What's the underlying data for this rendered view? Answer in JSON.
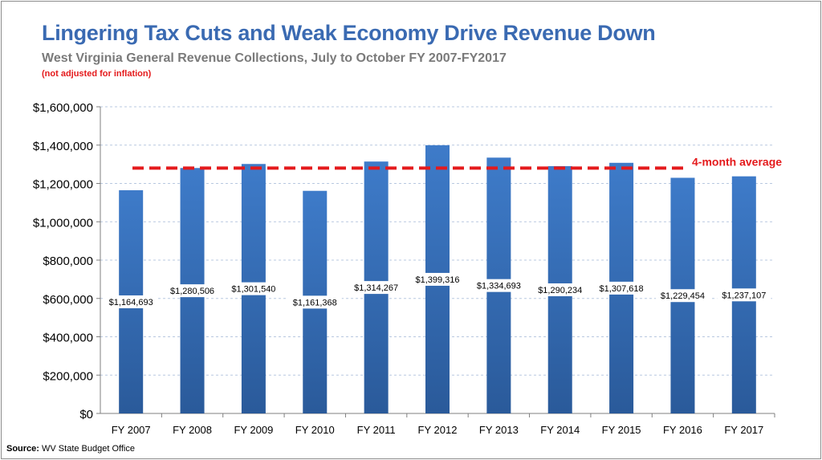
{
  "header": {
    "title": "Lingering Tax Cuts and Weak Economy Drive Revenue Down",
    "subtitle": "West Virginia General Revenue Collections, July to October FY 2007-FY2017",
    "note": "(not adjusted for inflation)"
  },
  "footer": {
    "source_label": "Source:",
    "source_text": "WV State Budget Office"
  },
  "chart_data": {
    "type": "bar",
    "title": "Lingering Tax Cuts and Weak Economy Drive Revenue Down",
    "subtitle": "West Virginia General Revenue Collections, July to October FY 2007-FY2017",
    "xlabel": "",
    "ylabel": "",
    "ylim": [
      0,
      1600000
    ],
    "yticks": [
      0,
      200000,
      400000,
      600000,
      800000,
      1000000,
      1200000,
      1400000,
      1600000
    ],
    "ytick_labels": [
      "$0",
      "$200,000",
      "$400,000",
      "$600,000",
      "$800,000",
      "$1,000,000",
      "$1,200,000",
      "$1,400,000",
      "$1,600,000"
    ],
    "categories": [
      "FY 2007",
      "FY 2008",
      "FY 2009",
      "FY 2010",
      "FY 2011",
      "FY 2012",
      "FY 2013",
      "FY 2014",
      "FY 2015",
      "FY 2016",
      "FY 2017"
    ],
    "values": [
      1164693,
      1280506,
      1301540,
      1161368,
      1314267,
      1399316,
      1334693,
      1290234,
      1307618,
      1229454,
      1237107
    ],
    "data_labels": [
      "$1,164,693",
      "$1,280,506",
      "$1,301,540",
      "$1,161,368",
      "$1,314,267",
      "$1,399,316",
      "$1,334,693",
      "$1,290,234",
      "$1,307,618",
      "$1,229,454",
      "$1,237,107"
    ],
    "reference_line": {
      "label": "4-month average",
      "value": 1280000,
      "style": "dashed",
      "color": "#e41a1c"
    },
    "grid": true,
    "legend": "none",
    "colors": {
      "bar_top": "#3e7bc9",
      "bar_bottom": "#2a5a9a",
      "grid": "#b8c8e0",
      "axis": "#7f7f7f"
    }
  }
}
